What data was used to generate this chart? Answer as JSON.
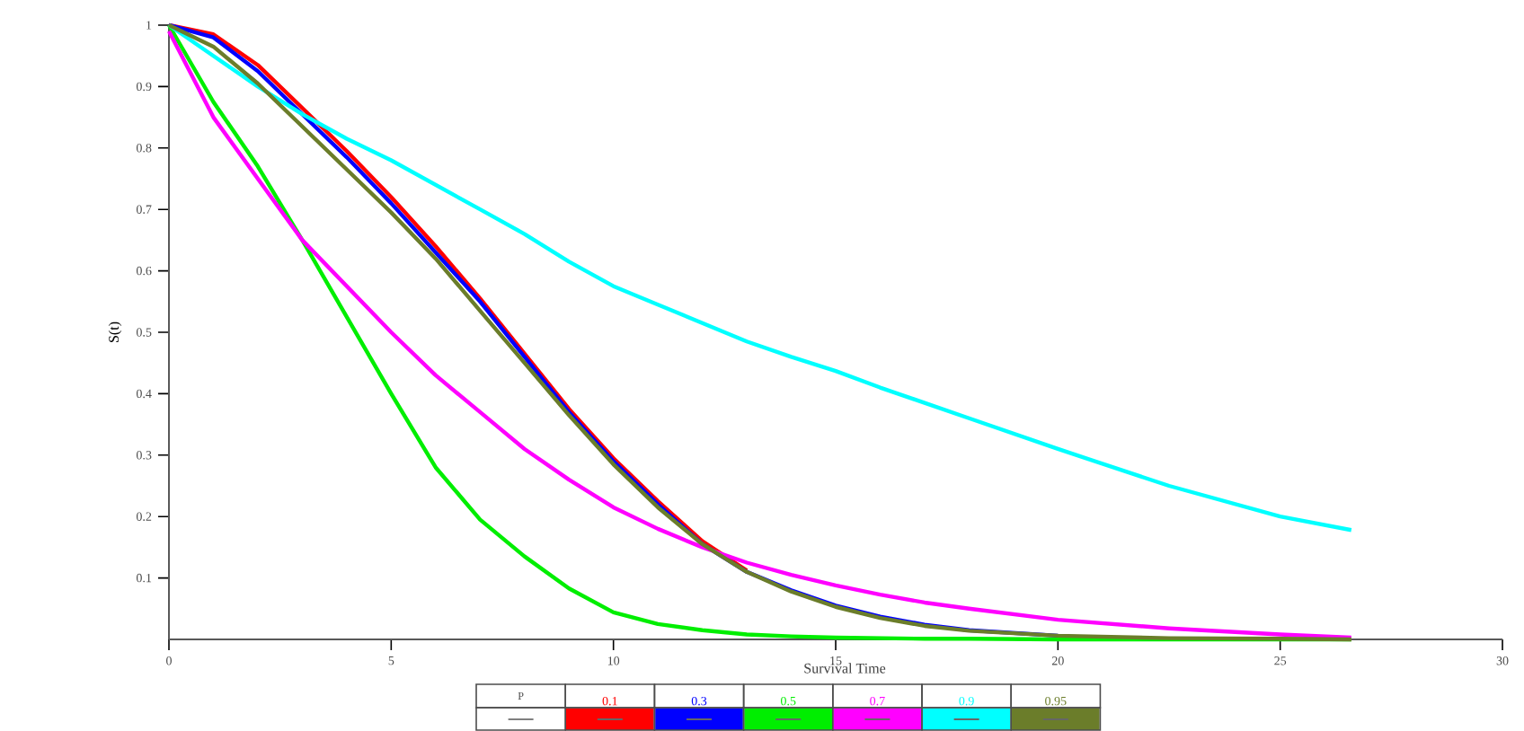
{
  "chart_data": {
    "type": "line",
    "xlabel": "Survival Time",
    "ylabel": "S(t)",
    "legend_title": "P",
    "legend": "bottom",
    "marker": "none",
    "line_style": "solid",
    "xlim": [
      0,
      30
    ],
    "ylim": [
      0,
      1
    ],
    "xticks": [
      0,
      5,
      10,
      15,
      20,
      25,
      30
    ],
    "yticks": [
      0.1,
      0.2,
      0.3,
      0.4,
      0.5,
      0.6,
      0.7,
      0.8,
      0.9,
      1
    ],
    "x": [
      0,
      1,
      2,
      3,
      4,
      5,
      6,
      7,
      8,
      9,
      10,
      11,
      12,
      13,
      14,
      15,
      16,
      17,
      18,
      20,
      22.5,
      25,
      26.6
    ],
    "series": [
      {
        "name": "0.1",
        "color": "#ff0000",
        "values": [
          1,
          0.985,
          0.935,
          0.865,
          0.795,
          0.72,
          0.64,
          0.555,
          0.465,
          0.375,
          0.295,
          0.225,
          0.16,
          0.112,
          null,
          null,
          null,
          null,
          null,
          null,
          null,
          null,
          null
        ]
      },
      {
        "name": "0.3",
        "color": "#0000ff",
        "values": [
          1,
          0.98,
          0.925,
          0.855,
          0.785,
          0.71,
          0.63,
          0.55,
          0.46,
          0.37,
          0.29,
          0.22,
          0.155,
          0.11,
          0.08,
          0.055,
          0.037,
          0.024,
          0.015,
          0.006,
          null,
          null,
          null
        ]
      },
      {
        "name": "0.5",
        "color": "#00ee00",
        "values": [
          1,
          0.875,
          0.77,
          0.65,
          0.525,
          0.4,
          0.28,
          0.195,
          0.135,
          0.083,
          0.044,
          0.025,
          0.015,
          0.008,
          0.005,
          0.003,
          0.002,
          0.001,
          0.001,
          0,
          0,
          0,
          0
        ]
      },
      {
        "name": "0.7",
        "color": "#ff00ff",
        "values": [
          0.99,
          0.85,
          0.75,
          0.65,
          0.575,
          0.5,
          0.43,
          0.37,
          0.31,
          0.26,
          0.215,
          0.18,
          0.15,
          0.125,
          0.105,
          0.088,
          0.073,
          0.06,
          0.05,
          0.032,
          0.018,
          0.008,
          0.003
        ]
      },
      {
        "name": "0.9",
        "color": "#00ffff",
        "values": [
          1,
          0.95,
          0.9,
          0.855,
          0.815,
          0.78,
          0.74,
          0.7,
          0.66,
          0.615,
          0.575,
          0.545,
          0.515,
          0.485,
          0.46,
          0.437,
          0.41,
          0.385,
          0.36,
          0.31,
          0.25,
          0.2,
          0.178
        ]
      },
      {
        "name": "0.95",
        "color": "#6b7d2a",
        "values": [
          1,
          0.965,
          0.905,
          0.835,
          0.765,
          0.695,
          0.62,
          0.535,
          0.45,
          0.365,
          0.285,
          0.215,
          0.155,
          0.11,
          0.078,
          0.053,
          0.035,
          0.022,
          0.014,
          0.006,
          0.002,
          0.001,
          0
        ]
      }
    ]
  }
}
